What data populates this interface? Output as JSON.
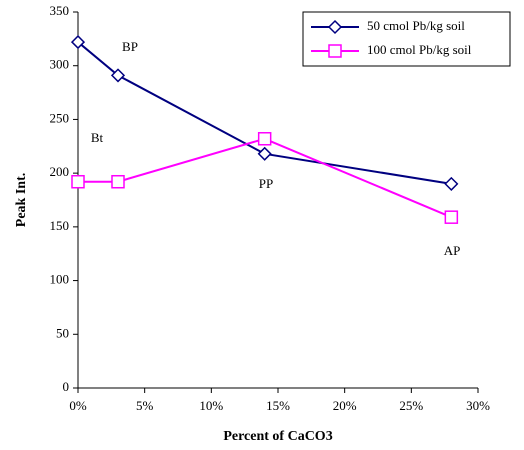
{
  "chart_data": {
    "type": "line",
    "xlabel": "Percent of CaCO3",
    "ylabel": "Peak Int.",
    "x": [
      0,
      3,
      14,
      28
    ],
    "series": [
      {
        "name": "50 cmol Pb/kg soil",
        "color": "#000080",
        "marker": "diamond",
        "values": [
          322,
          291,
          218,
          190
        ]
      },
      {
        "name": "100 cmol Pb/kg soil",
        "color": "#ff00ff",
        "marker": "square",
        "values": [
          192,
          192,
          232,
          159
        ]
      }
    ],
    "annotations": [
      "BP",
      "Bt",
      "PP",
      "AP"
    ],
    "xlim": [
      0,
      30
    ],
    "xticks": [
      {
        "value": 0,
        "label": "0%"
      },
      {
        "value": 5,
        "label": "5%"
      },
      {
        "value": 10,
        "label": "10%"
      },
      {
        "value": 15,
        "label": "15%"
      },
      {
        "value": 20,
        "label": "20%"
      },
      {
        "value": 25,
        "label": "25%"
      },
      {
        "value": 30,
        "label": "30%"
      }
    ],
    "ylim": [
      0,
      350
    ],
    "yticks": [
      0,
      50,
      100,
      150,
      200,
      250,
      300,
      350
    ],
    "grid": false,
    "legend": "upper right"
  }
}
